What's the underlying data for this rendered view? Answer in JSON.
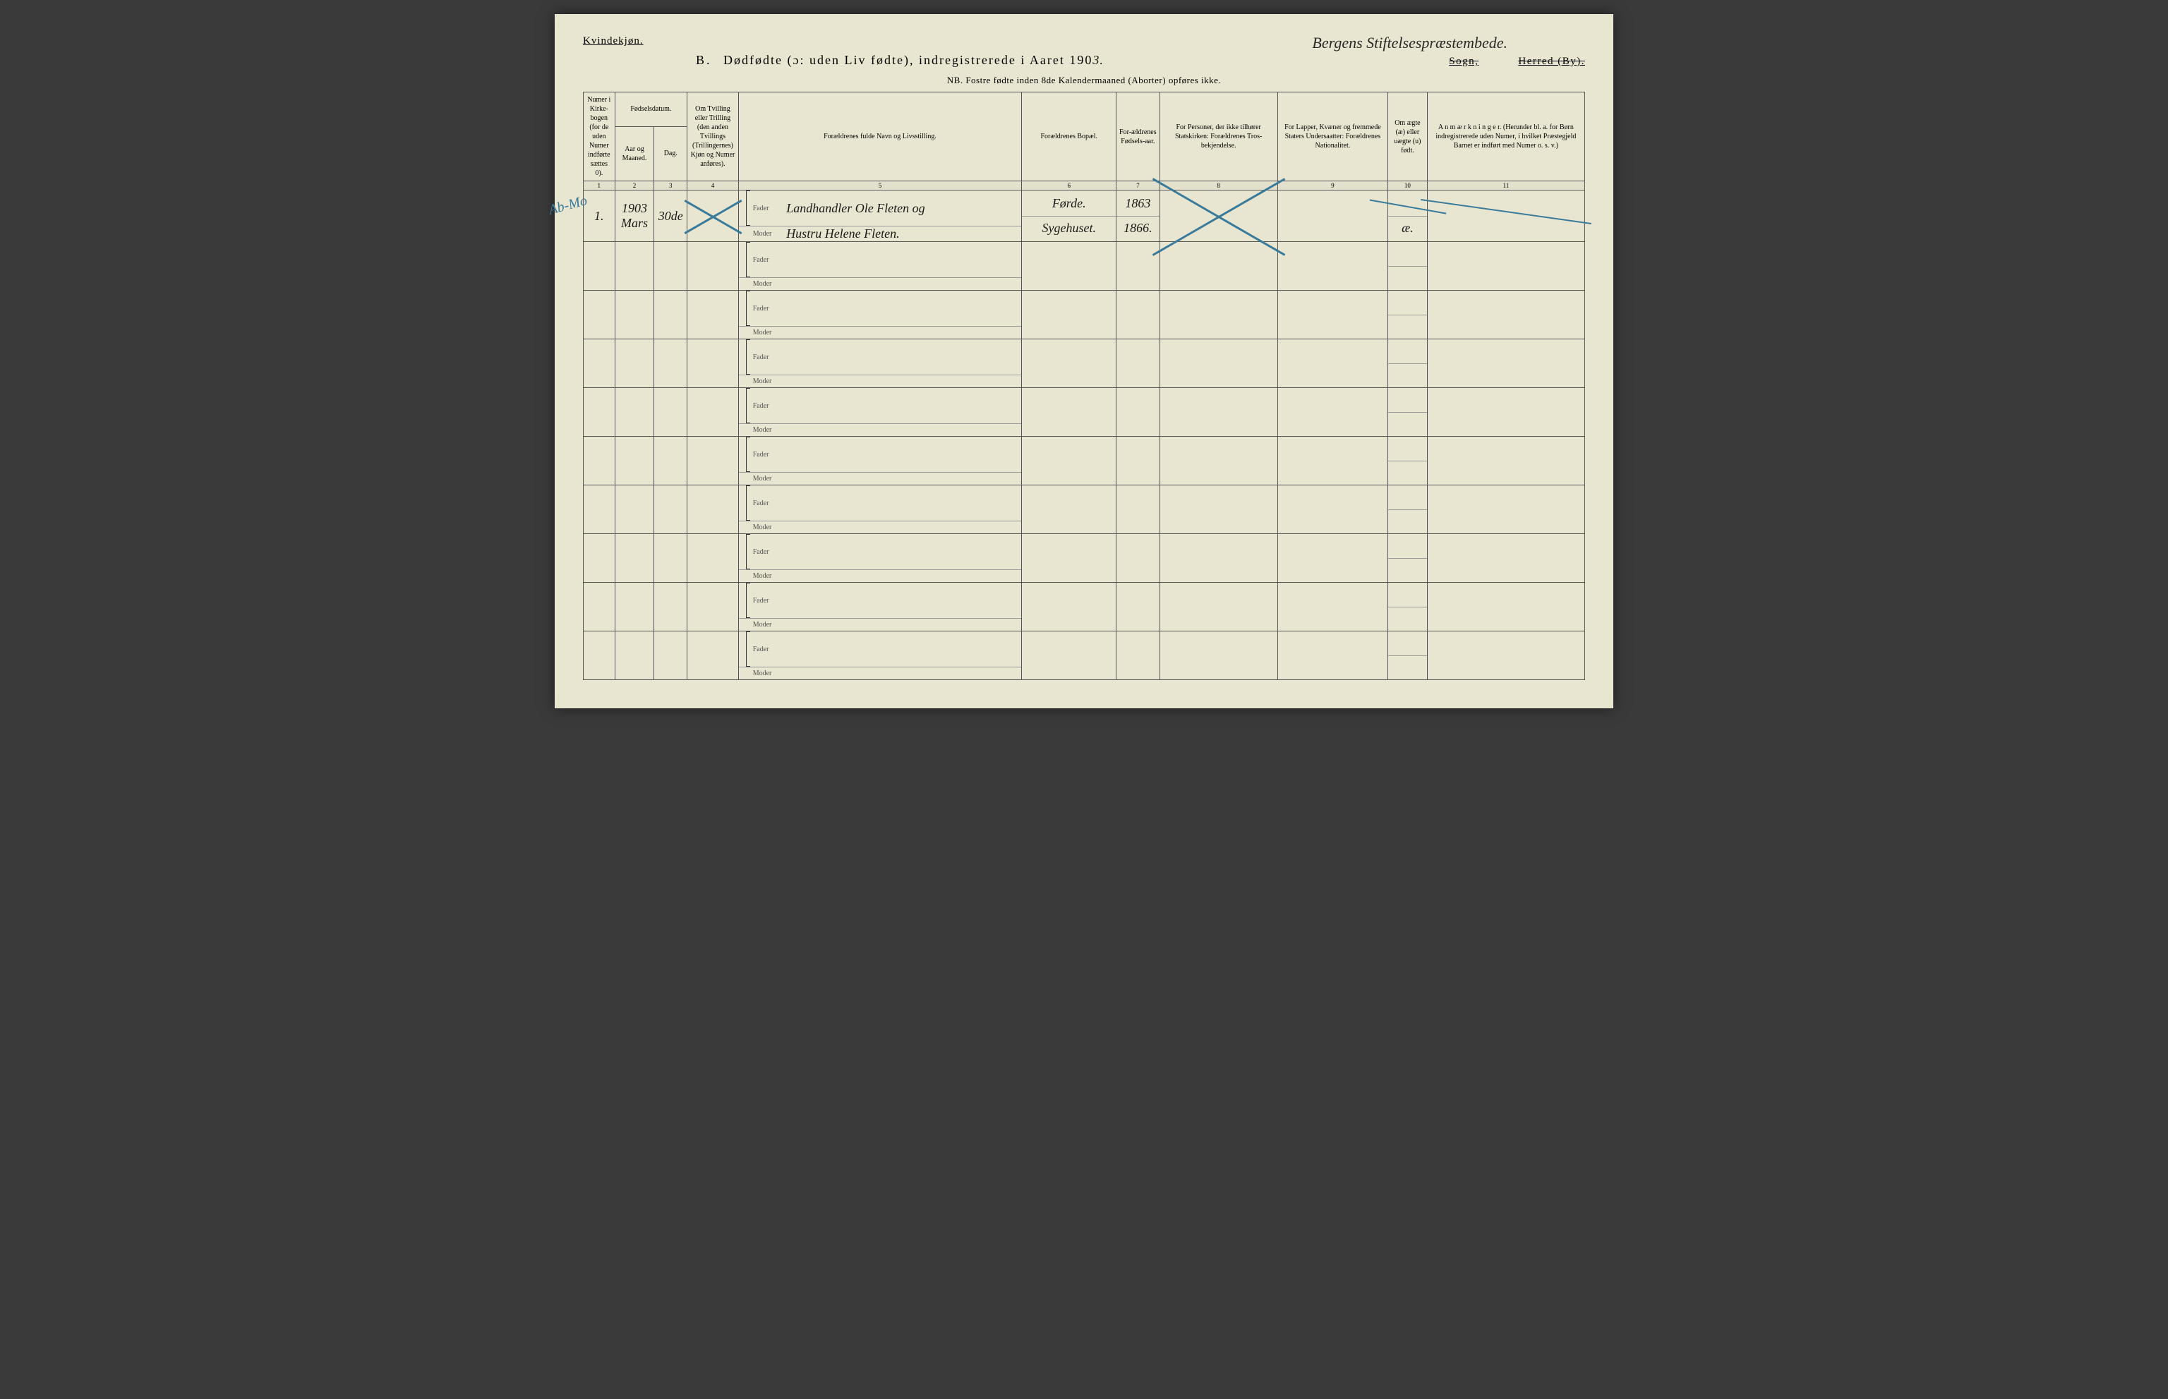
{
  "header": {
    "kvindekjon": "Kvindekjøn.",
    "title_prefix": "B.",
    "title_main": "Dødfødte (ɔ: uden Liv fødte), indregistrerede i Aaret 190",
    "year_suffix": "3.",
    "handwritten_parish": "Bergens Stiftelsespræstembede.",
    "sogn": "Sogn,",
    "herred": "Herred (By).",
    "nb": "NB.  Fostre fødte inden 8de Kalendermaaned (Aborter) opføres ikke."
  },
  "columns": {
    "c1": "Numer i Kirke-bogen (for de uden Numer indførte sættes 0).",
    "c2a": "Fødselsdatum.",
    "c2": "Aar og Maaned.",
    "c3": "Dag.",
    "c4": "Om Tvilling eller Trilling (den anden Tvillings (Trillingernes) Kjøn og Numer anføres).",
    "c5": "Forældrenes fulde Navn og Livsstilling.",
    "c6": "Forældrenes Bopæl.",
    "c7": "For-ældrenes Fødsels-aar.",
    "c8": "For Personer, der ikke tilhører Statskirken: Forældrenes Tros-bekjendelse.",
    "c9": "For Lapper, Kvæner og fremmede Staters Undersaatter: Forældrenes Nationalitet.",
    "c10": "Om ægte (æ) eller uægte (u) født.",
    "c11": "A n m æ r k n i n g e r. (Herunder bl. a. for Børn indregistrerede uden Numer, i hvilket Præstegjeld Barnet er indført med Numer o. s. v.)"
  },
  "colnums": [
    "1",
    "2",
    "3",
    "4",
    "5",
    "6",
    "7",
    "8",
    "9",
    "10",
    "11"
  ],
  "labels": {
    "fader": "Fader",
    "moder": "Moder"
  },
  "entry": {
    "seq": "1.",
    "margin_note": "Ab-Mo",
    "year_month": "1903 Mars",
    "day": "30de",
    "fader_name": "Landhandler Ole Fleten og",
    "moder_name": "Hustru Helene Fleten.",
    "fader_bopel": "Førde.",
    "moder_bopel": "Sygehuset.",
    "fader_year": "1863",
    "moder_year": "1866.",
    "legit": "æ."
  },
  "style": {
    "page_bg": "#e8e6d0",
    "ink": "#1a1a1a",
    "blue_pencil": "#3a7a9a",
    "border": "#555"
  },
  "empty_rows": 9
}
